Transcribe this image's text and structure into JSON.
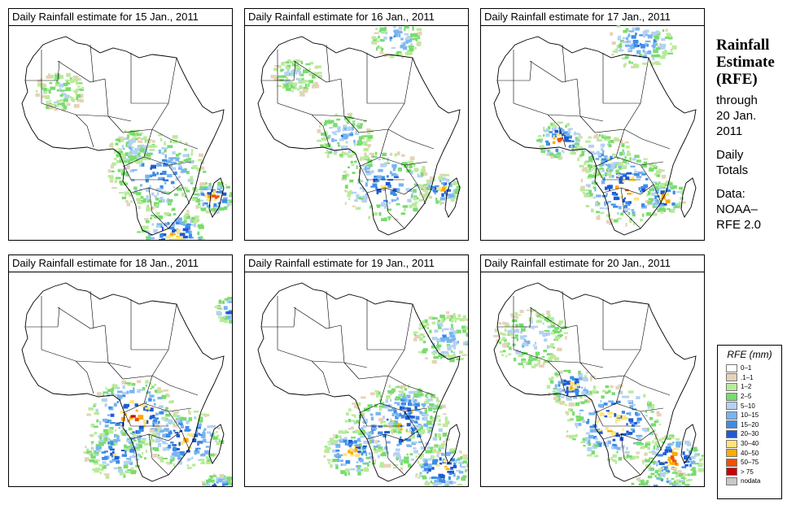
{
  "panels": [
    {
      "title": "Daily Rainfall estimate for  15 Jan., 2011"
    },
    {
      "title": "Daily Rainfall estimate for  16 Jan., 2011"
    },
    {
      "title": "Daily Rainfall estimate for  17 Jan., 2011"
    },
    {
      "title": "Daily Rainfall estimate for  18 Jan., 2011"
    },
    {
      "title": "Daily Rainfall estimate for  19 Jan., 2011"
    },
    {
      "title": "Daily Rainfall estimate for  20 Jan., 2011"
    }
  ],
  "sidebar": {
    "title_line1": "Rainfall",
    "title_line2": "Estimate",
    "title_line3": "(RFE)",
    "through": "through",
    "date_line1": "20 Jan.",
    "date_line2": "2011",
    "totals_line1": "Daily",
    "totals_line2": "Totals",
    "data_line1": "Data:",
    "data_line2": "NOAA–",
    "data_line3": "RFE 2.0"
  },
  "legend": {
    "title": "RFE (mm)",
    "items": [
      {
        "label": "0–1",
        "color": "#ffffff"
      },
      {
        "label": ".1–1",
        "color": "#e6d2b9"
      },
      {
        "label": "1–2",
        "color": "#b9eb9b"
      },
      {
        "label": "2–5",
        "color": "#78dc6e"
      },
      {
        "label": "5–10",
        "color": "#b4d2f0"
      },
      {
        "label": "10–15",
        "color": "#78b4f0"
      },
      {
        "label": "15–20",
        "color": "#3c8ce6"
      },
      {
        "label": "20–30",
        "color": "#1e5ad2"
      },
      {
        "label": "30–40",
        "color": "#ffe678"
      },
      {
        "label": "40–50",
        "color": "#ffaa00"
      },
      {
        "label": "50–75",
        "color": "#f05000"
      },
      {
        "label": "> 75",
        "color": "#c80000"
      },
      {
        "label": "nodata",
        "color": "#c8c8c8"
      }
    ]
  }
}
